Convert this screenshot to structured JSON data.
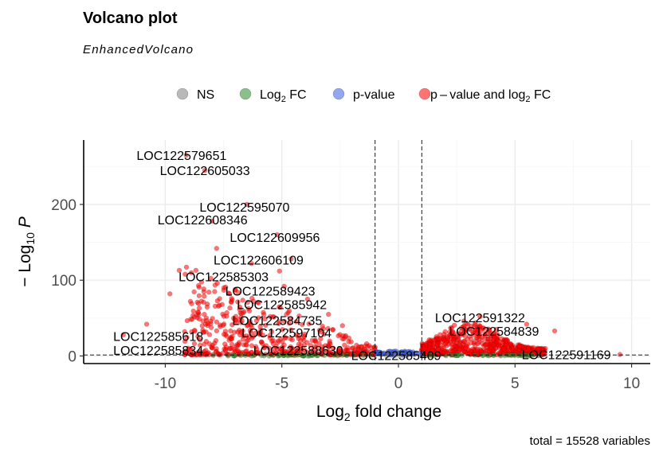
{
  "title": "Volcano plot",
  "subtitle": "EnhancedVolcano",
  "caption": "total = 15528 variables",
  "colors": {
    "ns": "#7f7f7f",
    "log2fc": "#2e8b2e",
    "pvalue": "#3a5fe0",
    "both": "#ff0000"
  },
  "chart_data": {
    "type": "scatter",
    "xlabel": "Log2 fold change",
    "ylabel": "-Log10 P",
    "xlim": [
      -13.5,
      10.8
    ],
    "ylim": [
      -10,
      285
    ],
    "xticks": [
      -10,
      -5,
      0,
      5,
      10
    ],
    "yticks": [
      0,
      100,
      200
    ],
    "fc_cutoff": [
      -1,
      1
    ],
    "p_cutoff_log10": 1.3,
    "legend": {
      "position": "top",
      "items": [
        {
          "key": "ns",
          "label": "NS"
        },
        {
          "key": "log2fc",
          "label": "Log2 FC",
          "base": "Log",
          "sub": "2",
          "rest": " FC"
        },
        {
          "key": "pvalue",
          "label": "p-value"
        },
        {
          "key": "both",
          "label": "p – value and log2 FC",
          "base": "p – value and log",
          "sub": "2",
          "rest": " FC"
        }
      ]
    },
    "labels": [
      {
        "text": "LOC122579651",
        "x": -9.3,
        "y": 265
      },
      {
        "text": "LOC122605033",
        "x": -8.3,
        "y": 245
      },
      {
        "text": "LOC122595070",
        "x": -6.6,
        "y": 197
      },
      {
        "text": "LOC122608346",
        "x": -8.4,
        "y": 180
      },
      {
        "text": "LOC122609956",
        "x": -5.3,
        "y": 157
      },
      {
        "text": "LOC122606109",
        "x": -6.0,
        "y": 127
      },
      {
        "text": "LOC122585303",
        "x": -7.5,
        "y": 105
      },
      {
        "text": "LOC122589423",
        "x": -5.5,
        "y": 86
      },
      {
        "text": "LOC122585942",
        "x": -5.0,
        "y": 68
      },
      {
        "text": "LOC122584735",
        "x": -5.2,
        "y": 47
      },
      {
        "text": "LOC122585618",
        "x": -10.3,
        "y": 26
      },
      {
        "text": "LOC122597104",
        "x": -4.8,
        "y": 31
      },
      {
        "text": "LOC122585834",
        "x": -10.3,
        "y": 8
      },
      {
        "text": "LOC122588630",
        "x": -4.3,
        "y": 8
      },
      {
        "text": "LOC122585409",
        "x": -0.1,
        "y": 1
      },
      {
        "text": "LOC122591322",
        "x": 3.5,
        "y": 51
      },
      {
        "text": "LOC122584839",
        "x": 4.1,
        "y": 33
      },
      {
        "text": "LOC122591169",
        "x": 7.2,
        "y": 2
      }
    ],
    "points": [
      {
        "x": -9.1,
        "y": 265,
        "c": "both"
      },
      {
        "x": -8.3,
        "y": 245,
        "c": "both"
      },
      {
        "x": -6.5,
        "y": 200,
        "c": "both"
      },
      {
        "x": -8.0,
        "y": 178,
        "c": "both"
      },
      {
        "x": -5.2,
        "y": 160,
        "c": "both"
      },
      {
        "x": -4.6,
        "y": 128,
        "c": "both"
      },
      {
        "x": -7.8,
        "y": 142,
        "c": "both"
      },
      {
        "x": -9.4,
        "y": 113,
        "c": "both"
      },
      {
        "x": -6.3,
        "y": 122,
        "c": "both"
      },
      {
        "x": -5.1,
        "y": 112,
        "c": "both"
      },
      {
        "x": -4.9,
        "y": 92,
        "c": "both"
      },
      {
        "x": -7.0,
        "y": 87,
        "c": "both"
      },
      {
        "x": -9.8,
        "y": 82,
        "c": "both"
      },
      {
        "x": -3.9,
        "y": 75,
        "c": "both"
      },
      {
        "x": -6.0,
        "y": 70,
        "c": "both"
      },
      {
        "x": -8.6,
        "y": 58,
        "c": "both"
      },
      {
        "x": -10.8,
        "y": 42,
        "c": "both"
      },
      {
        "x": -11.8,
        "y": 28,
        "c": "both"
      },
      {
        "x": -3.0,
        "y": 55,
        "c": "both"
      },
      {
        "x": -2.4,
        "y": 40,
        "c": "both"
      },
      {
        "x": -5.5,
        "y": 52,
        "c": "both"
      },
      {
        "x": -7.2,
        "y": 33,
        "c": "both"
      },
      {
        "x": 3.5,
        "y": 52,
        "c": "both"
      },
      {
        "x": 4.2,
        "y": 35,
        "c": "both"
      },
      {
        "x": 6.7,
        "y": 33,
        "c": "both"
      },
      {
        "x": 5.5,
        "y": 42,
        "c": "both"
      },
      {
        "x": 9.5,
        "y": 2,
        "c": "both"
      },
      {
        "x": 2.8,
        "y": 46,
        "c": "both"
      },
      {
        "x": -0.3,
        "y": 1.2,
        "c": "pvalue"
      },
      {
        "x": 0.2,
        "y": 0.8,
        "c": "pvalue"
      },
      {
        "x": -0.6,
        "y": 2.5,
        "c": "pvalue"
      },
      {
        "x": 0.5,
        "y": 3.5,
        "c": "pvalue"
      },
      {
        "x": -0.8,
        "y": 5.0,
        "c": "pvalue"
      },
      {
        "x": 0.1,
        "y": 4.2,
        "c": "pvalue"
      },
      {
        "x": 0.7,
        "y": 1.8,
        "c": "pvalue"
      },
      {
        "x": -0.4,
        "y": 6.0,
        "c": "pvalue"
      },
      {
        "x": 0.05,
        "y": 0.3,
        "c": "ns"
      },
      {
        "x": -0.15,
        "y": 0.5,
        "c": "ns"
      },
      {
        "x": 0.35,
        "y": 0.2,
        "c": "ns"
      },
      {
        "x": -0.5,
        "y": 0.1,
        "c": "ns"
      },
      {
        "x": -7.1,
        "y": 0.8,
        "c": "log2fc"
      },
      {
        "x": -6.2,
        "y": 0.5,
        "c": "log2fc"
      },
      {
        "x": -4.6,
        "y": 1.0,
        "c": "log2fc"
      },
      {
        "x": -3.5,
        "y": 0.4,
        "c": "log2fc"
      },
      {
        "x": -2.2,
        "y": 0.9,
        "c": "log2fc"
      },
      {
        "x": -1.5,
        "y": 0.6,
        "c": "log2fc"
      },
      {
        "x": 1.4,
        "y": 0.7,
        "c": "log2fc"
      },
      {
        "x": 2.5,
        "y": 0.5,
        "c": "log2fc"
      },
      {
        "x": 4.1,
        "y": 0.9,
        "c": "log2fc"
      },
      {
        "x": 6.0,
        "y": 0.4,
        "c": "log2fc"
      }
    ]
  }
}
